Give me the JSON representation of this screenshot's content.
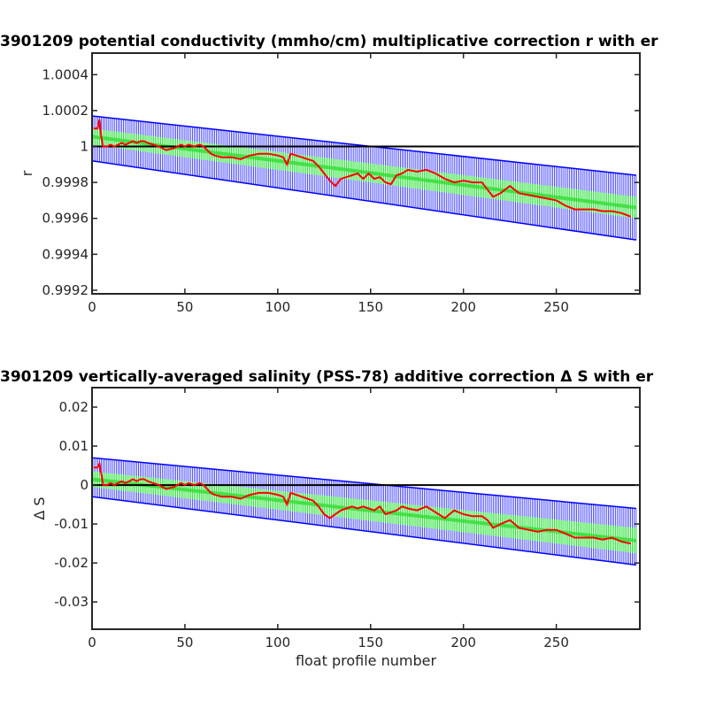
{
  "chart_data": [
    {
      "type": "line",
      "title": "3901209 potential conductivity (mmho/cm) multiplicative correction r with er",
      "xlabel": "",
      "ylabel": "r",
      "xlim": [
        0,
        295
      ],
      "ylim": [
        0.99918,
        1.00052
      ],
      "xticks": [
        0,
        50,
        100,
        150,
        200,
        250
      ],
      "yticks": [
        0.9992,
        0.9994,
        0.9996,
        0.9998,
        1,
        1.0002,
        1.0004
      ],
      "ytick_labels": [
        "0.9992",
        "0.9994",
        "0.9996",
        "0.9998",
        "1",
        "1.0002",
        "1.0004"
      ],
      "grid": false,
      "reference_line": 1.0,
      "error_band": {
        "x": [
          0,
          293
        ],
        "upper": [
          1.00017,
          0.99984
        ],
        "lower": [
          0.99992,
          0.99948
        ]
      },
      "fit_band": {
        "x": [
          0,
          293
        ],
        "upper": [
          1.0001,
          0.99972
        ],
        "lower": [
          1.00001,
          0.9996
        ]
      },
      "series": [
        {
          "color": "#ff0000",
          "x": [
            1,
            3,
            4,
            5,
            6,
            8,
            10,
            12,
            14,
            16,
            18,
            20,
            22,
            24,
            26,
            28,
            30,
            33,
            36,
            40,
            44,
            48,
            50,
            52,
            55,
            58,
            60,
            62,
            64,
            66,
            70,
            75,
            80,
            85,
            90,
            95,
            100,
            103,
            105,
            107,
            110,
            113,
            116,
            119,
            122,
            125,
            128,
            131,
            134,
            137,
            140,
            143,
            146,
            149,
            152,
            155,
            158,
            161,
            164,
            167,
            170,
            175,
            180,
            185,
            190,
            195,
            200,
            205,
            210,
            213,
            216,
            220,
            225,
            230,
            235,
            240,
            245,
            250,
            255,
            260,
            265,
            270,
            275,
            280,
            285,
            290
          ],
          "y": [
            1.0001,
            1.0001,
            1.00015,
            1.00005,
            1.0,
            1.0,
            1.00001,
            1.0,
            1.00001,
            1.00002,
            1.00001,
            1.00002,
            1.00003,
            1.00002,
            1.00003,
            1.00003,
            1.00002,
            1.00001,
            1.0,
            0.99998,
            0.99999,
            1.00001,
            1.0,
            1.00001,
            1.0,
            1.00001,
            1.0,
            0.99998,
            0.99996,
            0.99995,
            0.99994,
            0.99994,
            0.99993,
            0.99995,
            0.99996,
            0.99996,
            0.99995,
            0.99994,
            0.9999,
            0.99996,
            0.99995,
            0.99994,
            0.99993,
            0.99992,
            0.99989,
            0.99985,
            0.99981,
            0.99978,
            0.99982,
            0.99983,
            0.99984,
            0.99985,
            0.99982,
            0.99985,
            0.99982,
            0.99983,
            0.9998,
            0.99979,
            0.99984,
            0.99985,
            0.99987,
            0.99986,
            0.99987,
            0.99985,
            0.99982,
            0.9998,
            0.99981,
            0.9998,
            0.9998,
            0.99976,
            0.99972,
            0.99974,
            0.99978,
            0.99974,
            0.99973,
            0.99972,
            0.99971,
            0.9997,
            0.99967,
            0.99965,
            0.99965,
            0.99965,
            0.99964,
            0.99964,
            0.99963,
            0.99961
          ]
        }
      ]
    },
    {
      "type": "line",
      "title": "3901209 vertically-averaged salinity (PSS-78) additive correction Δ S with er",
      "xlabel": "float profile number",
      "ylabel": "Δ S",
      "xlim": [
        0,
        295
      ],
      "ylim": [
        -0.037,
        0.025
      ],
      "xticks": [
        0,
        50,
        100,
        150,
        200,
        250
      ],
      "yticks": [
        -0.03,
        -0.02,
        -0.01,
        0,
        0.01,
        0.02
      ],
      "ytick_labels": [
        "-0.03",
        "-0.02",
        "-0.01",
        "0",
        "0.01",
        "0.02"
      ],
      "grid": false,
      "reference_line": 0,
      "error_band": {
        "x": [
          0,
          293
        ],
        "upper": [
          0.007,
          -0.006
        ],
        "lower": [
          -0.003,
          -0.0205
        ]
      },
      "fit_band": {
        "x": [
          0,
          293
        ],
        "upper": [
          0.0035,
          -0.011
        ],
        "lower": [
          -0.0005,
          -0.0175
        ]
      },
      "series": [
        {
          "color": "#ff0000",
          "x": [
            1,
            3,
            4,
            5,
            6,
            8,
            10,
            12,
            14,
            16,
            18,
            20,
            22,
            24,
            26,
            28,
            30,
            33,
            36,
            40,
            44,
            48,
            50,
            52,
            55,
            58,
            60,
            62,
            64,
            66,
            70,
            75,
            80,
            85,
            90,
            95,
            100,
            103,
            105,
            107,
            110,
            113,
            116,
            119,
            122,
            125,
            128,
            131,
            134,
            137,
            140,
            143,
            146,
            149,
            152,
            155,
            158,
            161,
            164,
            167,
            170,
            175,
            180,
            185,
            190,
            195,
            200,
            205,
            210,
            213,
            216,
            220,
            225,
            230,
            235,
            240,
            245,
            250,
            255,
            260,
            265,
            270,
            275,
            280,
            285,
            290
          ],
          "y": [
            0.0045,
            0.0045,
            0.0055,
            0.0028,
            0.0,
            0.0,
            0.0005,
            0.0,
            0.0005,
            0.001,
            0.0005,
            0.001,
            0.0015,
            0.001,
            0.0015,
            0.0015,
            0.001,
            0.0005,
            0.0,
            -0.001,
            -0.0005,
            0.0005,
            0.0,
            0.0005,
            0.0,
            0.0005,
            0.0,
            -0.001,
            -0.002,
            -0.0025,
            -0.003,
            -0.003,
            -0.0035,
            -0.0025,
            -0.002,
            -0.002,
            -0.0025,
            -0.003,
            -0.005,
            -0.002,
            -0.0025,
            -0.003,
            -0.0035,
            -0.004,
            -0.0055,
            -0.0075,
            -0.0085,
            -0.0075,
            -0.0065,
            -0.006,
            -0.0055,
            -0.006,
            -0.0055,
            -0.006,
            -0.0065,
            -0.0055,
            -0.0075,
            -0.007,
            -0.0065,
            -0.0055,
            -0.006,
            -0.0065,
            -0.0055,
            -0.007,
            -0.0085,
            -0.0065,
            -0.0075,
            -0.008,
            -0.008,
            -0.009,
            -0.011,
            -0.01,
            -0.009,
            -0.011,
            -0.0115,
            -0.012,
            -0.0115,
            -0.0115,
            -0.0125,
            -0.0135,
            -0.0135,
            -0.0135,
            -0.014,
            -0.0135,
            -0.0145,
            -0.015
          ]
        }
      ]
    }
  ]
}
